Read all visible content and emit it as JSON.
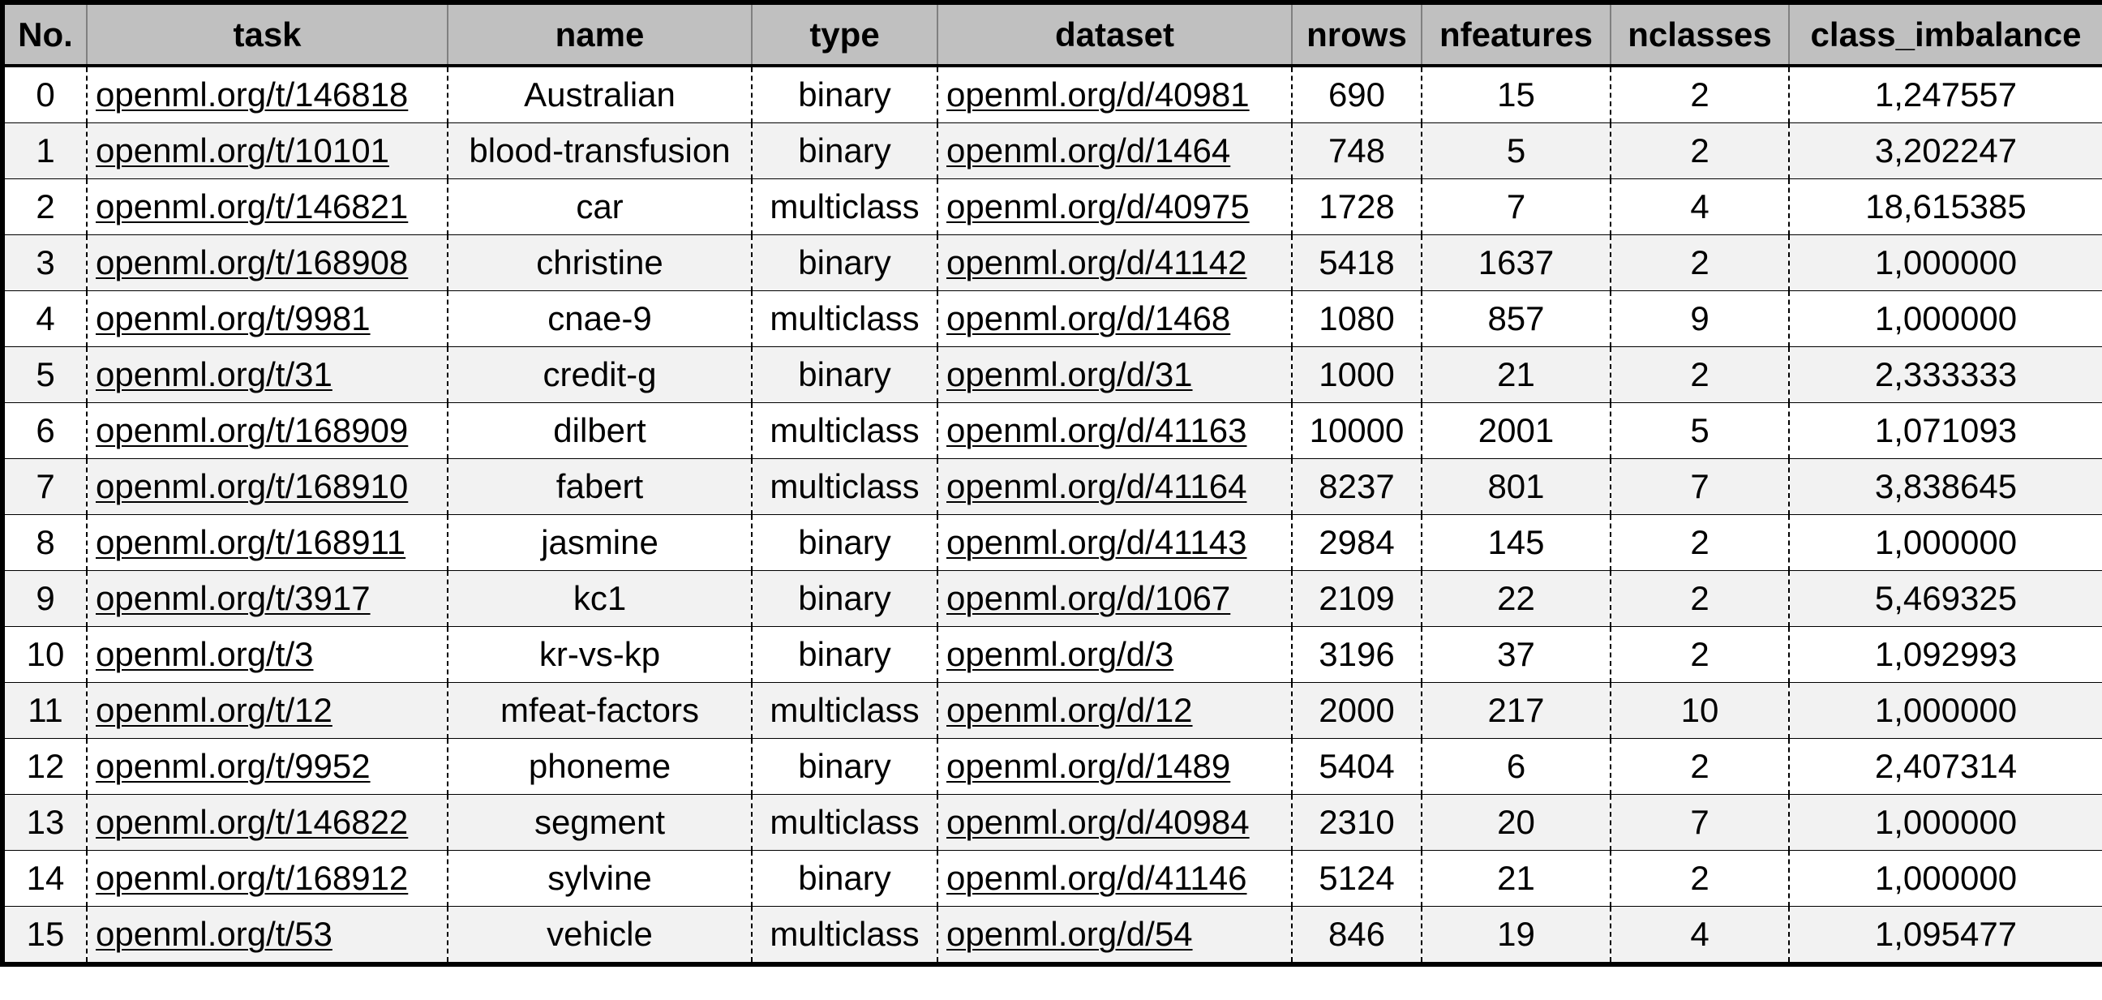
{
  "table": {
    "headers": [
      "No.",
      "task",
      "name",
      "type",
      "dataset",
      "nrows",
      "nfeatures",
      "nclasses",
      "class_imbalance"
    ],
    "rows": [
      {
        "no": "0",
        "task": "openml.org/t/146818",
        "name": "Australian",
        "type": "binary",
        "dataset": "openml.org/d/40981",
        "nrows": "690",
        "nfeatures": "15",
        "nclasses": "2",
        "class_imbalance": "1,247557"
      },
      {
        "no": "1",
        "task": "openml.org/t/10101",
        "name": "blood-transfusion",
        "type": "binary",
        "dataset": "openml.org/d/1464",
        "nrows": "748",
        "nfeatures": "5",
        "nclasses": "2",
        "class_imbalance": "3,202247"
      },
      {
        "no": "2",
        "task": "openml.org/t/146821",
        "name": "car",
        "type": "multiclass",
        "dataset": "openml.org/d/40975",
        "nrows": "1728",
        "nfeatures": "7",
        "nclasses": "4",
        "class_imbalance": "18,615385"
      },
      {
        "no": "3",
        "task": "openml.org/t/168908",
        "name": "christine",
        "type": "binary",
        "dataset": "openml.org/d/41142",
        "nrows": "5418",
        "nfeatures": "1637",
        "nclasses": "2",
        "class_imbalance": "1,000000"
      },
      {
        "no": "4",
        "task": "openml.org/t/9981",
        "name": "cnae-9",
        "type": "multiclass",
        "dataset": "openml.org/d/1468",
        "nrows": "1080",
        "nfeatures": "857",
        "nclasses": "9",
        "class_imbalance": "1,000000"
      },
      {
        "no": "5",
        "task": "openml.org/t/31",
        "name": "credit-g",
        "type": "binary",
        "dataset": "openml.org/d/31",
        "nrows": "1000",
        "nfeatures": "21",
        "nclasses": "2",
        "class_imbalance": "2,333333"
      },
      {
        "no": "6",
        "task": "openml.org/t/168909",
        "name": "dilbert",
        "type": "multiclass",
        "dataset": "openml.org/d/41163",
        "nrows": "10000",
        "nfeatures": "2001",
        "nclasses": "5",
        "class_imbalance": "1,071093"
      },
      {
        "no": "7",
        "task": "openml.org/t/168910",
        "name": "fabert",
        "type": "multiclass",
        "dataset": "openml.org/d/41164",
        "nrows": "8237",
        "nfeatures": "801",
        "nclasses": "7",
        "class_imbalance": "3,838645"
      },
      {
        "no": "8",
        "task": "openml.org/t/168911",
        "name": "jasmine",
        "type": "binary",
        "dataset": "openml.org/d/41143",
        "nrows": "2984",
        "nfeatures": "145",
        "nclasses": "2",
        "class_imbalance": "1,000000"
      },
      {
        "no": "9",
        "task": "openml.org/t/3917",
        "name": "kc1",
        "type": "binary",
        "dataset": "openml.org/d/1067",
        "nrows": "2109",
        "nfeatures": "22",
        "nclasses": "2",
        "class_imbalance": "5,469325"
      },
      {
        "no": "10",
        "task": "openml.org/t/3",
        "name": "kr-vs-kp",
        "type": "binary",
        "dataset": "openml.org/d/3",
        "nrows": "3196",
        "nfeatures": "37",
        "nclasses": "2",
        "class_imbalance": "1,092993"
      },
      {
        "no": "11",
        "task": "openml.org/t/12",
        "name": "mfeat-factors",
        "type": "multiclass",
        "dataset": "openml.org/d/12",
        "nrows": "2000",
        "nfeatures": "217",
        "nclasses": "10",
        "class_imbalance": "1,000000"
      },
      {
        "no": "12",
        "task": "openml.org/t/9952",
        "name": "phoneme",
        "type": "binary",
        "dataset": "openml.org/d/1489",
        "nrows": "5404",
        "nfeatures": "6",
        "nclasses": "2",
        "class_imbalance": "2,407314"
      },
      {
        "no": "13",
        "task": "openml.org/t/146822",
        "name": "segment",
        "type": "multiclass",
        "dataset": "openml.org/d/40984",
        "nrows": "2310",
        "nfeatures": "20",
        "nclasses": "7",
        "class_imbalance": "1,000000"
      },
      {
        "no": "14",
        "task": "openml.org/t/168912",
        "name": "sylvine",
        "type": "binary",
        "dataset": "openml.org/d/41146",
        "nrows": "5124",
        "nfeatures": "21",
        "nclasses": "2",
        "class_imbalance": "1,000000"
      },
      {
        "no": "15",
        "task": "openml.org/t/53",
        "name": "vehicle",
        "type": "multiclass",
        "dataset": "openml.org/d/54",
        "nrows": "846",
        "nfeatures": "19",
        "nclasses": "4",
        "class_imbalance": "1,095477"
      }
    ]
  },
  "colors": {
    "header_bg": "#c0c0c0",
    "row_alt_bg": "#f2f2f2",
    "row_bg": "#ffffff",
    "border": "#000000",
    "text": "#000000"
  }
}
